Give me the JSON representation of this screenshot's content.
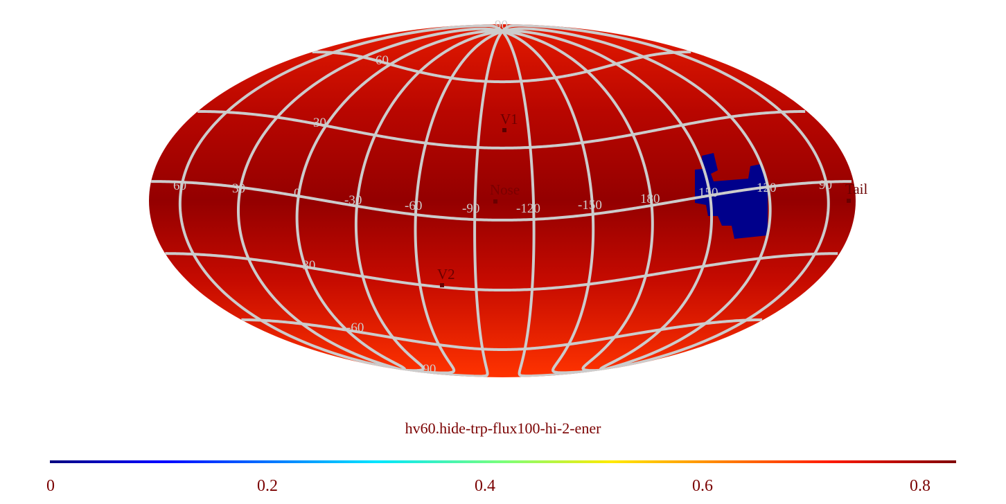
{
  "map": {
    "title": "hv60.hide-trp-flux100-hi-2-ener",
    "projection": "mollweide",
    "colormap": "jet",
    "graticule_color": "#cccccc",
    "lon_labels": [
      "60",
      "30",
      "0",
      "-30",
      "-60",
      "-90",
      "-120",
      "-150",
      "180",
      "150",
      "120",
      "90"
    ],
    "lat_labels": [
      "90",
      "60",
      "30",
      "-30",
      "-60",
      "-90"
    ],
    "markers": [
      {
        "label": "V1"
      },
      {
        "label": "Nose"
      },
      {
        "label": "V2"
      },
      {
        "label": "Tail"
      }
    ],
    "low_region_color": "#00008b",
    "background_color": "#990000"
  },
  "colorbar": {
    "min": 0,
    "max": 0.835,
    "ticks": [
      "0",
      "0.2",
      "0.4",
      "0.6",
      "0.8"
    ]
  }
}
